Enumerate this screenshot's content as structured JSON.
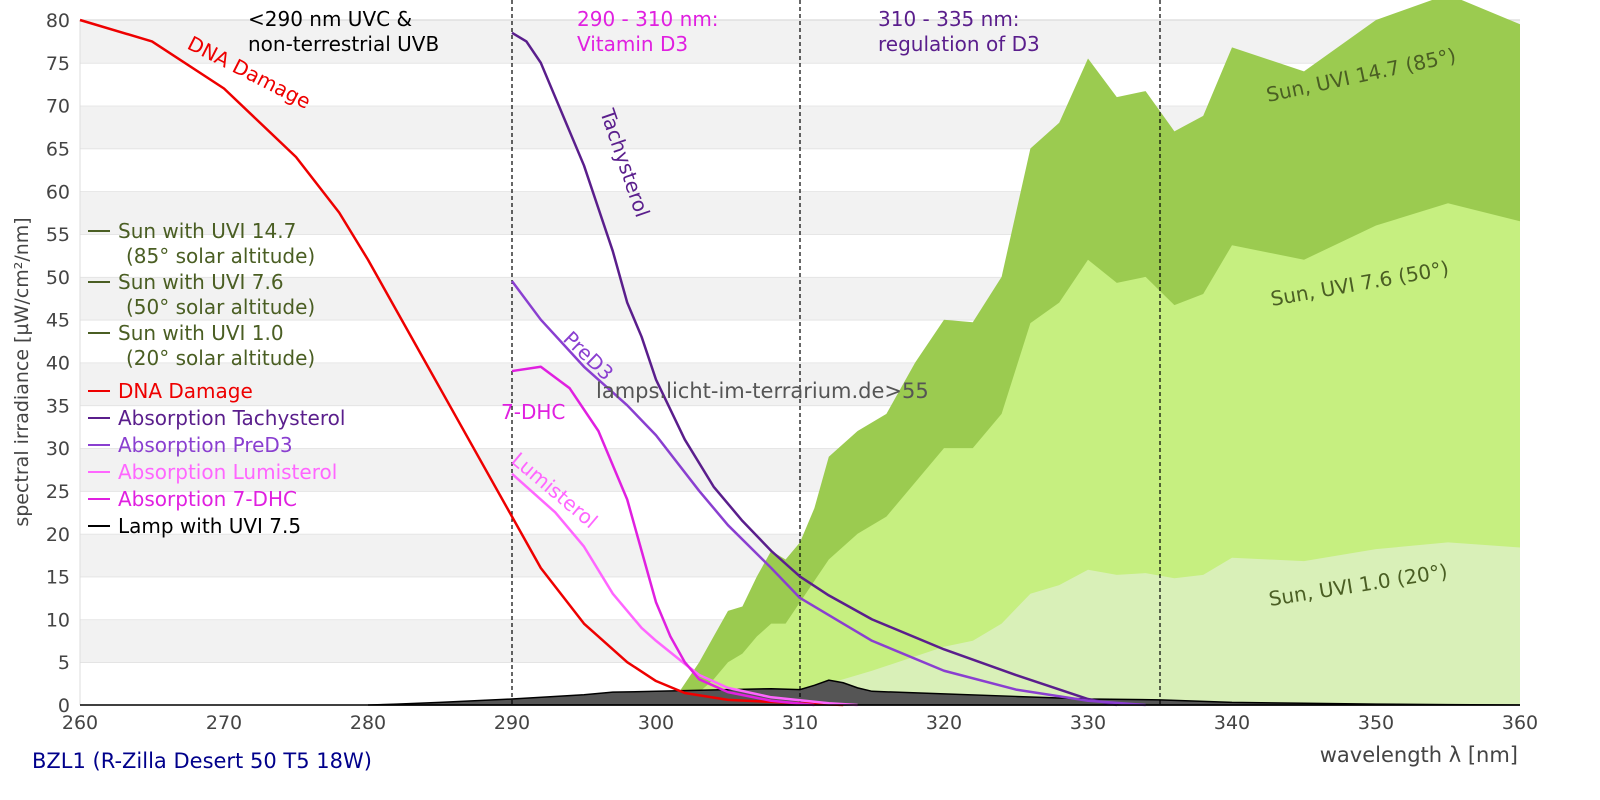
{
  "chart_data": {
    "type": "area",
    "title": "BZL1 (R-Zilla Desert 50 T5 18W)",
    "xlabel": "wavelength λ [nm]",
    "ylabel": "spectral irradiance [µW/cm²/nm]",
    "xlim": [
      260,
      360
    ],
    "ylim": [
      0,
      80
    ],
    "xticks": [
      260,
      270,
      280,
      290,
      300,
      310,
      320,
      330,
      340,
      350,
      360
    ],
    "yticks": [
      0,
      5,
      10,
      15,
      20,
      25,
      30,
      35,
      40,
      45,
      50,
      55,
      60,
      65,
      70,
      75,
      80
    ],
    "grid": "alternating horizontal bands",
    "legend_position": "left",
    "legend": [
      {
        "label": "Sun with UVI 14.7",
        "label2": "(85° solar altitude)",
        "color": "#4a5e23"
      },
      {
        "label": "Sun with UVI 7.6",
        "label2": "(50° solar altitude)",
        "color": "#4a5e23"
      },
      {
        "label": "Sun with UVI 1.0",
        "label2": "(20° solar altitude)",
        "color": "#4a5e23"
      },
      {
        "label": "DNA Damage",
        "color": "#ee0000"
      },
      {
        "label": "Absorption Tachysterol",
        "color": "#5a1e8c"
      },
      {
        "label": "Absorption PreD3",
        "color": "#8a3fd0"
      },
      {
        "label": "Absorption Lumisterol",
        "color": "#ff66ff"
      },
      {
        "label": "Absorption 7-DHC",
        "color": "#e020e0"
      },
      {
        "label": "Lamp with UVI 7.5",
        "color": "#000000"
      }
    ],
    "regions": [
      {
        "x": 290,
        "label1": "<290 nm UVC &",
        "label2": "non-terrestrial UVB",
        "color": "#000000"
      },
      {
        "x": 310,
        "label1": "290 - 310 nm:",
        "label2": "Vitamin D3",
        "color": "#e020e0"
      },
      {
        "x": 335,
        "label1": "310 - 335 nm:",
        "label2": "regulation of D3",
        "color": "#5a1e8c"
      }
    ],
    "watermark": "lamps.licht-im-terrarium.de>55",
    "series": [
      {
        "name": "Sun, UVI 14.7 (85°)",
        "kind": "area",
        "color": "#9bcb50",
        "x": [
          301,
          303,
          304,
          305,
          306,
          307,
          308,
          309,
          310,
          311,
          312,
          313,
          314,
          316,
          318,
          320,
          322,
          324,
          326,
          328,
          330,
          332,
          334,
          336,
          338,
          340,
          345,
          350,
          355,
          360
        ],
        "y": [
          0,
          5,
          8,
          11,
          11.5,
          15,
          18,
          17,
          19,
          23,
          29,
          30.5,
          32,
          34,
          40,
          45,
          44.7,
          50,
          65,
          68,
          75.5,
          71,
          71.7,
          67,
          68.8,
          76.8,
          74,
          80,
          83,
          79.5
        ]
      },
      {
        "name": "Sun, UVI 7.6 (50°)",
        "kind": "area",
        "color": "#c6ef80",
        "x": [
          302,
          304,
          305,
          306,
          307,
          308,
          309,
          310,
          312,
          314,
          316,
          318,
          320,
          322,
          324,
          326,
          328,
          330,
          332,
          334,
          336,
          338,
          340,
          345,
          350,
          355,
          360
        ],
        "y": [
          0,
          3,
          5,
          6,
          8,
          9.5,
          9.5,
          12,
          17,
          20,
          22,
          26,
          30,
          30,
          34,
          44.6,
          47,
          52,
          49.3,
          50,
          46.7,
          48,
          53.7,
          52,
          56,
          58.6,
          56.5
        ]
      },
      {
        "name": "Sun, UVI 1.0 (20°)",
        "kind": "area",
        "color": "#d9f0b8",
        "x": [
          303,
          305,
          310,
          315,
          320,
          322,
          324,
          326,
          328,
          330,
          332,
          334,
          336,
          338,
          340,
          345,
          350,
          355,
          360
        ],
        "y": [
          0,
          0.3,
          1.5,
          4,
          6.8,
          7.5,
          9.5,
          13,
          14,
          15.8,
          15.2,
          15.4,
          14.8,
          15.2,
          17.2,
          16.8,
          18.2,
          19,
          18.4
        ]
      },
      {
        "name": "Lamp with UVI 7.5",
        "kind": "area",
        "color": "#555555",
        "x": [
          280,
          282,
          285,
          290,
          295,
          297,
          300,
          305,
          308,
          310,
          311,
          312,
          313,
          314,
          315,
          320,
          325,
          330,
          335,
          340,
          345,
          350,
          355,
          360
        ],
        "y": [
          0,
          0.1,
          0.3,
          0.7,
          1.2,
          1.5,
          1.6,
          1.8,
          1.9,
          1.8,
          2.3,
          2.9,
          2.6,
          2,
          1.6,
          1.3,
          1,
          0.7,
          0.6,
          0.3,
          0.2,
          0.1,
          0.05,
          0
        ]
      },
      {
        "name": "DNA Damage",
        "kind": "line",
        "color": "#ee0000",
        "x": [
          260,
          265,
          270,
          275,
          278,
          280,
          285,
          290,
          292,
          295,
          298,
          300,
          302,
          305,
          310,
          313
        ],
        "y": [
          80,
          77.5,
          72,
          64,
          57.5,
          52,
          37,
          22,
          16,
          9.5,
          5,
          2.8,
          1.4,
          0.6,
          0.2,
          0
        ]
      },
      {
        "name": "Tachysterol",
        "kind": "line",
        "color": "#5a1e8c",
        "x": [
          290,
          291,
          292,
          293,
          294,
          295,
          296,
          297,
          298,
          299,
          300,
          302,
          304,
          306,
          308,
          310,
          312,
          315,
          320,
          325,
          330,
          332
        ],
        "y": [
          78.5,
          77.5,
          75,
          71,
          67,
          63,
          58,
          53,
          47,
          43,
          38,
          31,
          25.5,
          21.5,
          18,
          15,
          12.8,
          10,
          6.5,
          3.5,
          0.7,
          0
        ]
      },
      {
        "name": "PreD3",
        "kind": "line",
        "color": "#8a3fd0",
        "x": [
          290,
          292,
          295,
          298,
          300,
          303,
          305,
          308,
          310,
          313,
          315,
          320,
          325,
          330,
          334
        ],
        "y": [
          49.5,
          45,
          39.5,
          35,
          31.5,
          25,
          21,
          16,
          12.5,
          9.5,
          7.5,
          4,
          1.8,
          0.5,
          0
        ]
      },
      {
        "name": "Lumisterol",
        "kind": "line",
        "color": "#ff66ff",
        "x": [
          290,
          293,
          295,
          297,
          299,
          300,
          302,
          303,
          305,
          308,
          312,
          314
        ],
        "y": [
          27,
          22.5,
          18.5,
          13,
          9,
          7.5,
          4.8,
          3.5,
          2,
          0.9,
          0.2,
          0
        ]
      },
      {
        "name": "7-DHC",
        "kind": "line",
        "color": "#e020e0",
        "x": [
          290,
          292,
          294,
          296,
          298,
          299,
          300,
          301,
          302,
          303,
          305,
          308,
          311
        ],
        "y": [
          39,
          39.5,
          37,
          32,
          24,
          18,
          12,
          8,
          5,
          3,
          1.5,
          0.5,
          0
        ]
      }
    ]
  }
}
